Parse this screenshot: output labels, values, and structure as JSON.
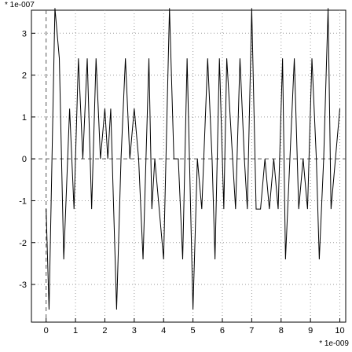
{
  "chart_data": {
    "type": "line",
    "y_multiplier_label": "* 1e-007",
    "x_multiplier_label": "* 1e-009",
    "xlim": [
      -0.5,
      10.2
    ],
    "ylim": [
      -3.9,
      3.55
    ],
    "x_ticks": [
      0,
      1,
      2,
      3,
      4,
      5,
      6,
      7,
      8,
      9,
      10
    ],
    "y_ticks": [
      -3,
      -2,
      -1,
      0,
      1,
      2,
      3
    ],
    "x_tick_labels": [
      "0",
      "1",
      "2",
      "3",
      "4",
      "5",
      "6",
      "7",
      "8",
      "9",
      "10"
    ],
    "y_tick_labels": [
      "-3",
      "-2",
      "-1",
      "0",
      "1",
      "2",
      "3"
    ],
    "grid": true,
    "series": [
      {
        "x": [
          0.0,
          0.1,
          0.3,
          0.45,
          0.6,
          0.8,
          0.95,
          1.1,
          1.25,
          1.4,
          1.55,
          1.7,
          1.85,
          2.0,
          2.1,
          2.2,
          2.4,
          2.55,
          2.7,
          2.85,
          3.0,
          3.15,
          3.3,
          3.5,
          3.6,
          3.7,
          3.85,
          4.0,
          4.2,
          4.35,
          4.5,
          4.65,
          4.8,
          5.0,
          5.15,
          5.3,
          5.5,
          5.65,
          5.75,
          5.9,
          6.05,
          6.15,
          6.35,
          6.45,
          6.6,
          6.75,
          6.85,
          7.0,
          7.15,
          7.3,
          7.45,
          7.6,
          7.75,
          7.9,
          8.05,
          8.15,
          8.3,
          8.45,
          8.6,
          8.75,
          8.9,
          9.05,
          9.2,
          9.3,
          9.45,
          9.6,
          9.7,
          9.85,
          10.0
        ],
        "y": [
          -1.2,
          -3.6,
          3.6,
          2.4,
          -2.4,
          1.2,
          -1.2,
          2.4,
          0.0,
          2.4,
          -1.2,
          2.4,
          0.0,
          1.2,
          0.0,
          1.2,
          -3.6,
          0.0,
          2.4,
          0.0,
          1.2,
          0.0,
          -2.4,
          2.4,
          -1.2,
          0.0,
          -1.2,
          -2.4,
          3.6,
          0.0,
          0.0,
          -2.4,
          2.4,
          -3.6,
          0.0,
          -1.2,
          2.4,
          0.0,
          -2.4,
          2.4,
          -1.2,
          2.4,
          0.0,
          -1.2,
          2.4,
          0.0,
          -1.2,
          3.6,
          -1.2,
          -1.2,
          0.0,
          -1.2,
          0.0,
          -1.2,
          2.4,
          -2.4,
          0.0,
          2.4,
          -1.2,
          0.0,
          -1.2,
          2.4,
          0.0,
          -2.4,
          0.0,
          3.6,
          -1.2,
          0.0,
          1.2
        ]
      }
    ]
  }
}
